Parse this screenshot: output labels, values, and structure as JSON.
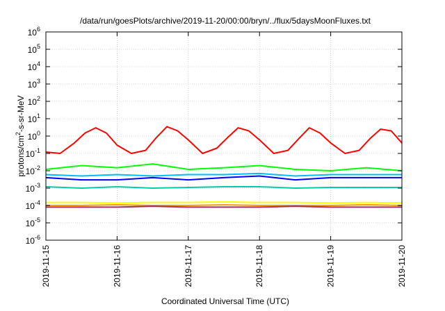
{
  "chart_data": {
    "type": "line",
    "title": "/data/run/goesPlots/archive/2019-11-20/00:00/bryn/../flux/5daysMoonFluxes.txt",
    "xlabel": "Coordinated Universal Time (UTC)",
    "ylabel": {
      "base": "protons/cm",
      "sup": "2",
      "rest": "-s-sr-MeV"
    },
    "yscale": "log",
    "ylim_exp": [
      -6,
      6
    ],
    "y_ticks": [
      {
        "base": "10",
        "exp": "-6"
      },
      {
        "base": "10",
        "exp": "-5"
      },
      {
        "base": "10",
        "exp": "-4"
      },
      {
        "base": "10",
        "exp": "-3"
      },
      {
        "base": "10",
        "exp": "-2"
      },
      {
        "base": "10",
        "exp": "-1"
      },
      {
        "base": "10",
        "exp": "0"
      },
      {
        "base": "10",
        "exp": "1"
      },
      {
        "base": "10",
        "exp": "2"
      },
      {
        "base": "10",
        "exp": "3"
      },
      {
        "base": "10",
        "exp": "4"
      },
      {
        "base": "10",
        "exp": "5"
      },
      {
        "base": "10",
        "exp": "6"
      }
    ],
    "x_ticks": [
      "2019-11-15",
      "2019-11-16",
      "2019-11-17",
      "2019-11-18",
      "2019-11-19",
      "2019-11-20"
    ],
    "xlim_days": [
      0,
      5
    ],
    "grid": true,
    "series": [
      {
        "color": "#ff0000",
        "x": [
          0,
          0.2,
          0.4,
          0.55,
          0.7,
          0.85,
          1.0,
          1.2,
          1.4,
          1.55,
          1.7,
          1.85,
          2.0,
          2.2,
          2.4,
          2.55,
          2.7,
          2.85,
          3.0,
          3.2,
          3.4,
          3.55,
          3.7,
          3.85,
          4.0,
          4.2,
          4.4,
          4.55,
          4.7,
          4.85,
          5.0
        ],
        "y": [
          0.12,
          0.1,
          0.4,
          1.5,
          3.0,
          1.5,
          0.3,
          0.1,
          0.15,
          0.8,
          3.5,
          2.0,
          0.6,
          0.1,
          0.2,
          0.8,
          3.0,
          2.0,
          0.6,
          0.1,
          0.15,
          0.7,
          3.0,
          1.5,
          0.4,
          0.1,
          0.15,
          0.7,
          2.5,
          2.0,
          0.4
        ]
      },
      {
        "color": "#00ff00",
        "x": [
          0,
          0.5,
          1.0,
          1.5,
          2.0,
          2.5,
          3.0,
          3.5,
          4.0,
          4.5,
          5.0
        ],
        "y": [
          0.012,
          0.02,
          0.015,
          0.025,
          0.012,
          0.015,
          0.02,
          0.012,
          0.01,
          0.015,
          0.01
        ]
      },
      {
        "color": "#00bbff",
        "x": [
          0,
          0.5,
          1.0,
          1.5,
          2.0,
          2.5,
          3.0,
          3.5,
          4.0,
          4.5,
          5.0
        ],
        "y": [
          0.006,
          0.005,
          0.006,
          0.005,
          0.006,
          0.006,
          0.007,
          0.005,
          0.006,
          0.006,
          0.006
        ]
      },
      {
        "color": "#0000ff",
        "x": [
          0,
          0.5,
          1.0,
          1.5,
          2.0,
          2.5,
          3.0,
          3.5,
          4.0,
          4.5,
          5.0
        ],
        "y": [
          0.004,
          0.003,
          0.003,
          0.004,
          0.003,
          0.004,
          0.005,
          0.003,
          0.004,
          0.004,
          0.004
        ]
      },
      {
        "color": "#00ccaa",
        "x": [
          0,
          0.5,
          1.0,
          1.5,
          2.0,
          2.5,
          3.0,
          3.5,
          4.0,
          4.5,
          5.0
        ],
        "y": [
          0.0012,
          0.001,
          0.0012,
          0.001,
          0.0011,
          0.0012,
          0.0012,
          0.001,
          0.0011,
          0.0011,
          0.0011
        ]
      },
      {
        "color": "#ffff00",
        "x": [
          0,
          0.5,
          1.0,
          1.5,
          2.0,
          2.5,
          3.0,
          3.5,
          4.0,
          4.5,
          5.0
        ],
        "y": [
          0.00015,
          0.00015,
          0.00014,
          0.00015,
          0.00015,
          0.00016,
          0.00015,
          0.00015,
          0.00014,
          0.00015,
          0.00014
        ]
      },
      {
        "color": "#ff9900",
        "x": [
          0,
          0.5,
          1.0,
          1.5,
          2.0,
          2.5,
          3.0,
          3.5,
          4.0,
          4.5,
          5.0
        ],
        "y": [
          0.0001,
          0.0001,
          0.00011,
          0.0001,
          0.0001,
          0.00011,
          0.0001,
          0.0001,
          0.0001,
          0.00011,
          0.0001
        ]
      },
      {
        "color": "#993366",
        "x": [
          0,
          0.5,
          1.0,
          1.5,
          2.0,
          2.5,
          3.0,
          3.5,
          4.0,
          4.5,
          5.0
        ],
        "y": [
          8e-05,
          8e-05,
          8e-05,
          9e-05,
          8e-05,
          8e-05,
          8e-05,
          9e-05,
          8e-05,
          8e-05,
          8e-05
        ]
      }
    ]
  }
}
